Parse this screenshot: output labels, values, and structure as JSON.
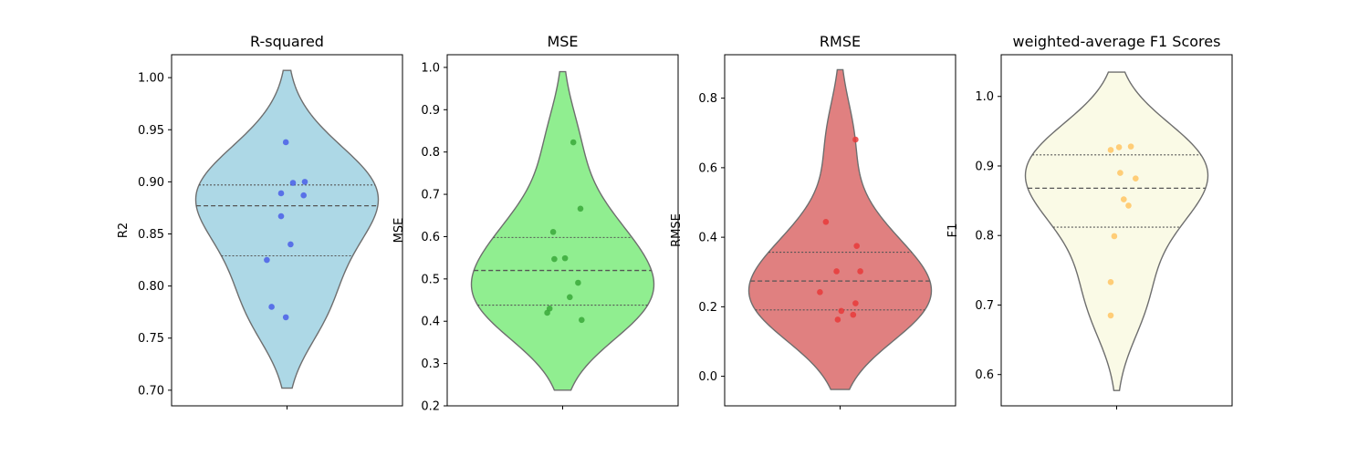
{
  "chart_data": [
    {
      "type": "violin",
      "title": "R-squared",
      "ylabel": "R2",
      "ylim": [
        0.685,
        1.022
      ],
      "yticks": [
        0.7,
        0.75,
        0.8,
        0.85,
        0.9,
        0.95,
        1.0
      ],
      "tick_labels": [
        "0.70",
        "0.75",
        "0.80",
        "0.85",
        "0.90",
        "0.95",
        "1.00"
      ],
      "violin_range": [
        0.702,
        1.007
      ],
      "quartiles": [
        0.829,
        0.877,
        0.897
      ],
      "fill_color": "#add8e6",
      "point_color": "#4a5fe8",
      "points": [
        {
          "jitter": -0.01,
          "value": 0.938
        },
        {
          "jitter": 0.05,
          "value": 0.899
        },
        {
          "jitter": 0.15,
          "value": 0.9
        },
        {
          "jitter": -0.05,
          "value": 0.889
        },
        {
          "jitter": 0.14,
          "value": 0.887
        },
        {
          "jitter": -0.05,
          "value": 0.867
        },
        {
          "jitter": 0.03,
          "value": 0.84
        },
        {
          "jitter": -0.17,
          "value": 0.825
        },
        {
          "jitter": -0.13,
          "value": 0.78
        },
        {
          "jitter": -0.01,
          "value": 0.77
        }
      ]
    },
    {
      "type": "violin",
      "title": "MSE",
      "ylabel": "MSE",
      "ylim": [
        0.2,
        1.03
      ],
      "yticks": [
        0.2,
        0.3,
        0.4,
        0.5,
        0.6,
        0.7,
        0.8,
        0.9,
        1.0
      ],
      "tick_labels": [
        "0.2",
        "0.3",
        "0.4",
        "0.5",
        "0.6",
        "0.7",
        "0.8",
        "0.9",
        "1.0"
      ],
      "violin_range": [
        0.237,
        0.99
      ],
      "quartiles": [
        0.438,
        0.52,
        0.598
      ],
      "fill_color": "#90ee90",
      "point_color": "#3aa83a",
      "points": [
        {
          "jitter": 0.09,
          "value": 0.823
        },
        {
          "jitter": 0.15,
          "value": 0.666
        },
        {
          "jitter": -0.08,
          "value": 0.611
        },
        {
          "jitter": -0.07,
          "value": 0.547
        },
        {
          "jitter": 0.02,
          "value": 0.549
        },
        {
          "jitter": 0.13,
          "value": 0.491
        },
        {
          "jitter": 0.06,
          "value": 0.457
        },
        {
          "jitter": -0.11,
          "value": 0.43
        },
        {
          "jitter": -0.13,
          "value": 0.42
        },
        {
          "jitter": 0.16,
          "value": 0.403
        }
      ]
    },
    {
      "type": "violin",
      "title": "RMSE",
      "ylabel": "RMSE",
      "ylim": [
        -0.085,
        0.925
      ],
      "yticks": [
        0.0,
        0.2,
        0.4,
        0.6,
        0.8
      ],
      "tick_labels": [
        "0.0",
        "0.2",
        "0.4",
        "0.6",
        "0.8"
      ],
      "violin_range": [
        -0.038,
        0.882
      ],
      "quartiles": [
        0.191,
        0.274,
        0.357
      ],
      "fill_color": "#e08080",
      "point_color": "#e83a3a",
      "points": [
        {
          "jitter": 0.13,
          "value": 0.681
        },
        {
          "jitter": -0.12,
          "value": 0.444
        },
        {
          "jitter": 0.14,
          "value": 0.375
        },
        {
          "jitter": -0.03,
          "value": 0.302
        },
        {
          "jitter": 0.17,
          "value": 0.302
        },
        {
          "jitter": -0.17,
          "value": 0.242
        },
        {
          "jitter": 0.13,
          "value": 0.21
        },
        {
          "jitter": 0.01,
          "value": 0.188
        },
        {
          "jitter": 0.11,
          "value": 0.177
        },
        {
          "jitter": -0.02,
          "value": 0.163
        }
      ]
    },
    {
      "type": "violin",
      "title": "weighted-average F1 Scores",
      "ylabel": "F1",
      "ylim": [
        0.555,
        1.06
      ],
      "yticks": [
        0.6,
        0.7,
        0.8,
        0.9,
        1.0
      ],
      "tick_labels": [
        "0.6",
        "0.7",
        "0.8",
        "0.9",
        "1.0"
      ],
      "violin_range": [
        0.577,
        1.035
      ],
      "quartiles": [
        0.812,
        0.868,
        0.916
      ],
      "fill_color": "#fafae6",
      "point_color": "#ffc463",
      "points": [
        {
          "jitter": -0.05,
          "value": 0.923
        },
        {
          "jitter": 0.02,
          "value": 0.927
        },
        {
          "jitter": 0.12,
          "value": 0.928
        },
        {
          "jitter": 0.03,
          "value": 0.89
        },
        {
          "jitter": 0.16,
          "value": 0.882
        },
        {
          "jitter": 0.06,
          "value": 0.852
        },
        {
          "jitter": 0.1,
          "value": 0.843
        },
        {
          "jitter": -0.02,
          "value": 0.799
        },
        {
          "jitter": -0.05,
          "value": 0.733
        },
        {
          "jitter": -0.05,
          "value": 0.685
        }
      ]
    }
  ]
}
